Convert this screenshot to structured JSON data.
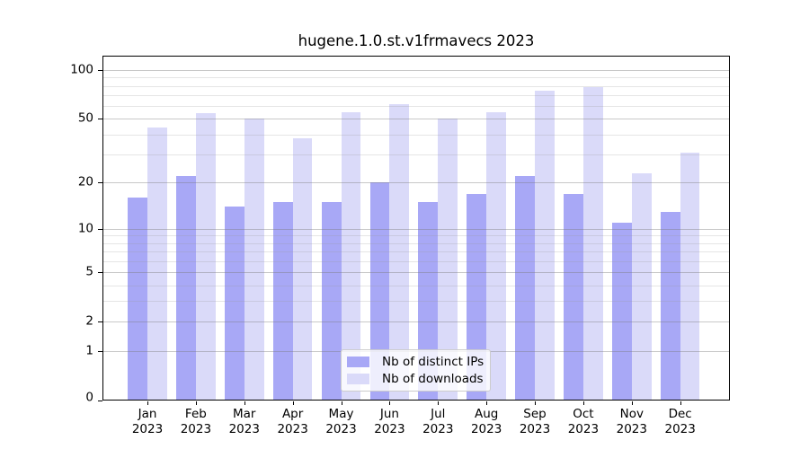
{
  "chart_data": {
    "type": "bar",
    "title": "hugene.1.0.st.v1frmavecs 2023",
    "categories": [
      "Jan",
      "Feb",
      "Mar",
      "Apr",
      "May",
      "Jun",
      "Jul",
      "Aug",
      "Sep",
      "Oct",
      "Nov",
      "Dec"
    ],
    "category_year": "2023",
    "series": [
      {
        "name": "Nb of distinct IPs",
        "color": "#a8a8f6",
        "values": [
          16,
          22,
          14,
          15,
          15,
          20,
          15,
          17,
          22,
          17,
          11,
          13
        ]
      },
      {
        "name": "Nb of downloads",
        "color": "#dadaf9",
        "values": [
          44,
          54,
          50,
          38,
          55,
          62,
          50,
          55,
          75,
          79,
          23,
          31
        ]
      }
    ],
    "y_scale": "log1p",
    "y_ticks_major": [
      0,
      1,
      2,
      5,
      10,
      20,
      50,
      100
    ],
    "y_ticks_minor": [
      3,
      4,
      6,
      7,
      8,
      9,
      30,
      40,
      60,
      70,
      80,
      90
    ],
    "ylim": [
      0,
      115
    ],
    "xlabel": "",
    "ylabel": "",
    "grid": "on",
    "grid_above_bars": true,
    "legend_position": "lower center",
    "background_color": "#ffffff",
    "frame_color": "#000000"
  }
}
